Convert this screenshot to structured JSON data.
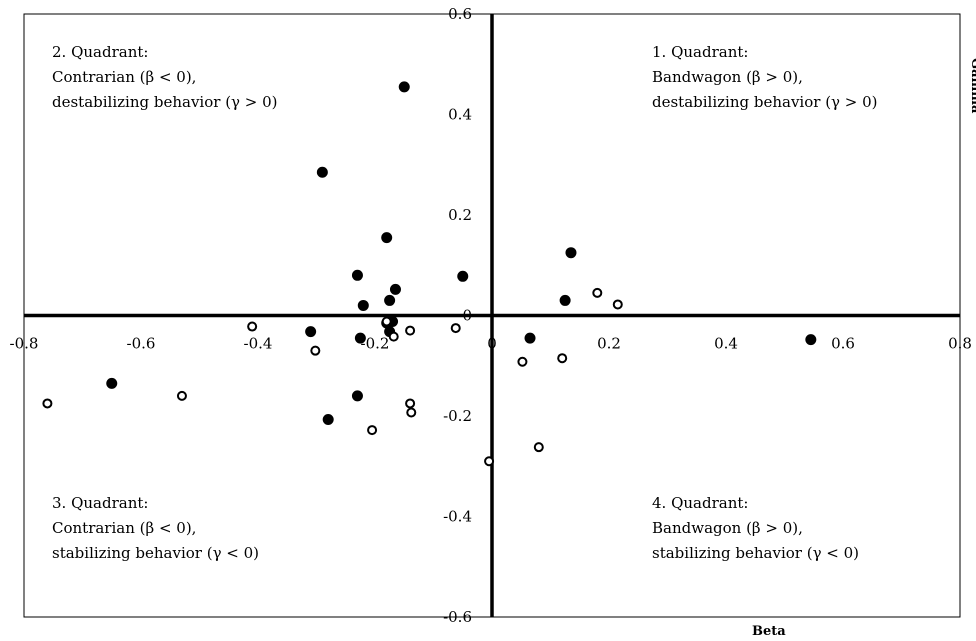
{
  "chart_data": {
    "type": "scatter",
    "xlabel": "Beta",
    "ylabel": "Gamma",
    "xlim": [
      -0.8,
      0.8
    ],
    "ylim": [
      -0.6,
      0.6
    ],
    "x_ticks": [
      {
        "value": -0.8,
        "label": "-0.8"
      },
      {
        "value": -0.6,
        "label": "-0.6"
      },
      {
        "value": -0.4,
        "label": "-0.4"
      },
      {
        "value": -0.2,
        "label": "-0.2"
      },
      {
        "value": 0,
        "label": "0"
      },
      {
        "value": 0.2,
        "label": "0.2"
      },
      {
        "value": 0.4,
        "label": "0.4"
      },
      {
        "value": 0.6,
        "label": "0.6"
      },
      {
        "value": 0.8,
        "label": "0.8"
      }
    ],
    "y_ticks": [
      {
        "value": 0.6,
        "label": "0.6"
      },
      {
        "value": 0.4,
        "label": "0.4"
      },
      {
        "value": 0.2,
        "label": "0.2"
      },
      {
        "value": 0,
        "label": "0"
      },
      {
        "value": -0.2,
        "label": "-0.2"
      },
      {
        "value": -0.4,
        "label": "-0.4"
      },
      {
        "value": -0.6,
        "label": "-0.6"
      }
    ],
    "quadrants": [
      {
        "lines": [
          "1. Quadrant:",
          "Bandwagon (β > 0),",
          "destabilizing behavior (γ > 0)"
        ],
        "position": "top-right"
      },
      {
        "lines": [
          "2. Quadrant:",
          "Contrarian (β < 0),",
          "destabilizing behavior (γ > 0)"
        ],
        "position": "top-left"
      },
      {
        "lines": [
          "3. Quadrant:",
          "Contrarian (β < 0),",
          "stabilizing behavior (γ < 0)"
        ],
        "position": "bottom-left"
      },
      {
        "lines": [
          "4. Quadrant:",
          "Bandwagon (β > 0),",
          "stabilizing behavior (γ < 0)"
        ],
        "position": "bottom-right"
      }
    ],
    "series": [
      {
        "marker": "filled-circle",
        "points": [
          {
            "x": -0.15,
            "y": 0.455
          },
          {
            "x": -0.29,
            "y": 0.285
          },
          {
            "x": -0.18,
            "y": 0.155
          },
          {
            "x": -0.23,
            "y": 0.08
          },
          {
            "x": -0.05,
            "y": 0.078
          },
          {
            "x": -0.165,
            "y": 0.052
          },
          {
            "x": -0.175,
            "y": 0.03
          },
          {
            "x": -0.22,
            "y": 0.02
          },
          {
            "x": -0.17,
            "y": -0.012
          },
          {
            "x": -0.18,
            "y": -0.015
          },
          {
            "x": -0.31,
            "y": -0.032
          },
          {
            "x": -0.175,
            "y": -0.032
          },
          {
            "x": -0.225,
            "y": -0.045
          },
          {
            "x": -0.65,
            "y": -0.135
          },
          {
            "x": -0.23,
            "y": -0.16
          },
          {
            "x": -0.28,
            "y": -0.207
          },
          {
            "x": 0.135,
            "y": 0.125
          },
          {
            "x": 0.125,
            "y": 0.03
          },
          {
            "x": 0.065,
            "y": -0.045
          },
          {
            "x": 0.545,
            "y": -0.048
          }
        ]
      },
      {
        "marker": "open-circle",
        "points": [
          {
            "x": -0.41,
            "y": -0.022
          },
          {
            "x": -0.18,
            "y": -0.012
          },
          {
            "x": -0.14,
            "y": -0.03
          },
          {
            "x": -0.062,
            "y": -0.025
          },
          {
            "x": -0.168,
            "y": -0.042
          },
          {
            "x": -0.302,
            "y": -0.07
          },
          {
            "x": -0.76,
            "y": -0.175
          },
          {
            "x": -0.53,
            "y": -0.16
          },
          {
            "x": -0.14,
            "y": -0.175
          },
          {
            "x": -0.138,
            "y": -0.193
          },
          {
            "x": -0.205,
            "y": -0.228
          },
          {
            "x": -0.005,
            "y": -0.29
          },
          {
            "x": 0.052,
            "y": -0.092
          },
          {
            "x": 0.12,
            "y": -0.085
          },
          {
            "x": 0.08,
            "y": -0.262
          },
          {
            "x": 0.18,
            "y": 0.045
          },
          {
            "x": 0.215,
            "y": 0.022
          }
        ]
      }
    ]
  }
}
